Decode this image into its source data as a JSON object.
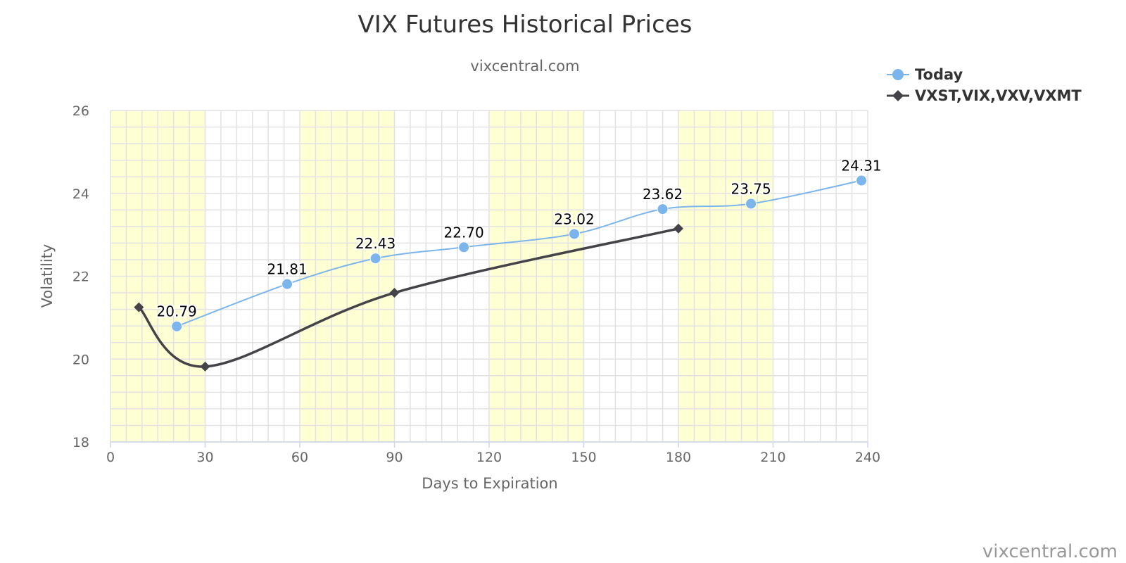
{
  "chart_data": {
    "type": "line",
    "title": "VIX Futures Historical Prices",
    "subtitle": "vixcentral.com",
    "credit": "vixcentral.com",
    "xlabel": "Days to Expiration",
    "ylabel": "Volatility",
    "xlim": [
      0,
      240
    ],
    "ylim": [
      18,
      26
    ],
    "x_ticks": [
      0,
      30,
      60,
      90,
      120,
      150,
      180,
      210,
      240
    ],
    "y_ticks": [
      18,
      20,
      22,
      24,
      26
    ],
    "x_tick_labels": [
      "0",
      "30",
      "60",
      "90",
      "120",
      "150",
      "180",
      "210",
      "240"
    ],
    "y_tick_labels": [
      "18",
      "20",
      "22",
      "24",
      "26"
    ],
    "grid": true,
    "legend_position": "top-right",
    "bands": [
      [
        0,
        30
      ],
      [
        60,
        90
      ],
      [
        120,
        150
      ],
      [
        180,
        210
      ]
    ],
    "series": [
      {
        "name": "Today",
        "color": "#7cb5ec",
        "marker": "circle",
        "x": [
          21,
          56,
          84,
          112,
          147,
          175,
          203,
          238
        ],
        "values": [
          20.79,
          21.81,
          22.43,
          22.7,
          23.02,
          23.62,
          23.75,
          24.31
        ],
        "labels": [
          "20.79",
          "21.81",
          "22.43",
          "22.70",
          "23.02",
          "23.62",
          "23.75",
          "24.31"
        ]
      },
      {
        "name": "VXST,VIX,VXV,VXMT",
        "color": "#434348",
        "marker": "diamond",
        "x": [
          9,
          30,
          90,
          180
        ],
        "values": [
          21.25,
          19.82,
          21.6,
          23.15
        ]
      }
    ]
  }
}
